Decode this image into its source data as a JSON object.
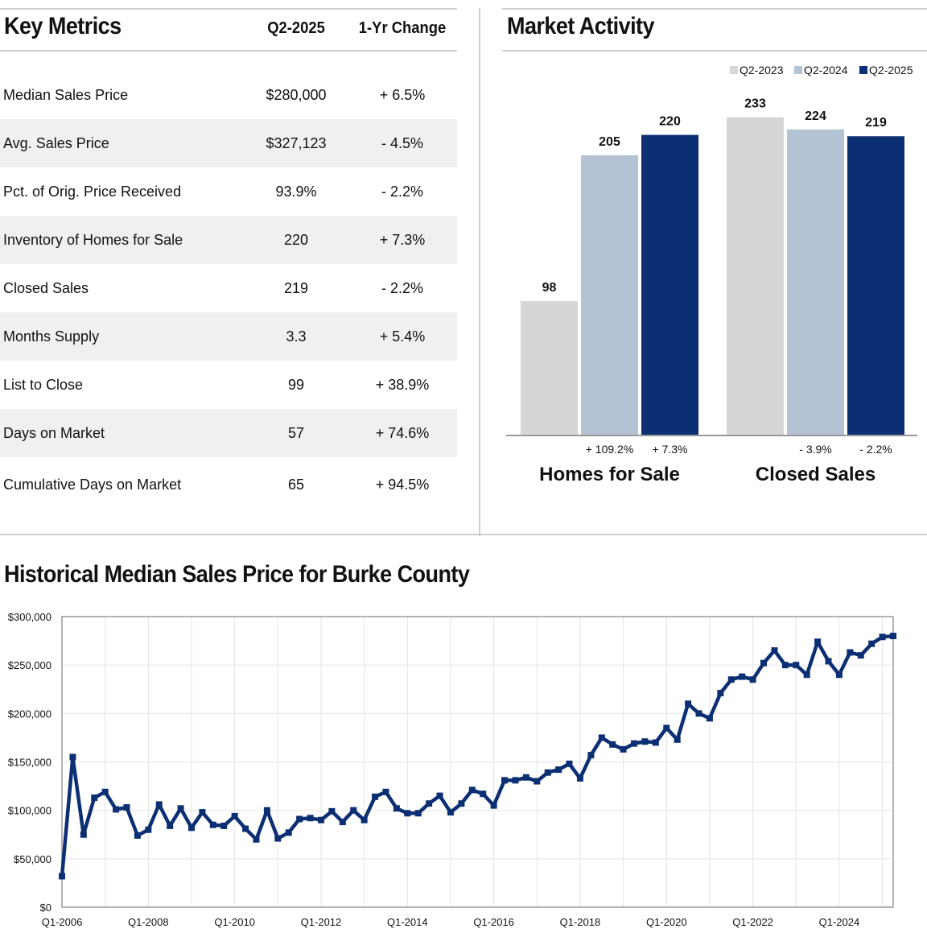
{
  "key_metrics": {
    "title": "Key Metrics",
    "col_period": "Q2-2025",
    "col_change": "1-Yr Change",
    "rows": [
      {
        "label": "Median Sales Price",
        "value": "$280,000",
        "change": "+ 6.5%"
      },
      {
        "label": "Avg. Sales Price",
        "value": "$327,123",
        "change": "- 4.5%"
      },
      {
        "label": "Pct. of Orig. Price Received",
        "value": "93.9%",
        "change": "- 2.2%"
      },
      {
        "label": "Inventory of Homes for Sale",
        "value": "220",
        "change": "+ 7.3%"
      },
      {
        "label": "Closed Sales",
        "value": "219",
        "change": "- 2.2%"
      },
      {
        "label": "Months Supply",
        "value": "3.3",
        "change": "+ 5.4%"
      },
      {
        "label": "List to Close",
        "value": "99",
        "change": "+ 38.9%"
      },
      {
        "label": "Days on Market",
        "value": "57",
        "change": "+ 74.6%"
      },
      {
        "label": "Cumulative Days on Market",
        "value": "65",
        "change": "+ 94.5%"
      }
    ]
  },
  "market_activity": {
    "title": "Market Activity"
  },
  "historical": {
    "title": "Historical Median Sales Price for Burke County"
  },
  "colors": {
    "q2_2023": "#d6d6d6",
    "q2_2024": "#b3c3d4",
    "q2_2025": "#0c2f74",
    "line": "#0c2f74"
  },
  "chart_data": [
    {
      "type": "bar",
      "title": "Market Activity",
      "categories": [
        "Homes for Sale",
        "Closed Sales"
      ],
      "legend": [
        "Q2-2023",
        "Q2-2024",
        "Q2-2025"
      ],
      "series": [
        {
          "name": "Q2-2023",
          "values": [
            98,
            233
          ]
        },
        {
          "name": "Q2-2024",
          "values": [
            205,
            224
          ]
        },
        {
          "name": "Q2-2025",
          "values": [
            220,
            219
          ]
        }
      ],
      "change_labels": [
        [
          "+ 109.2%",
          "+ 7.3%"
        ],
        [
          "- 3.9%",
          "- 2.2%"
        ]
      ],
      "ylim": [
        0,
        250
      ]
    },
    {
      "type": "line",
      "title": "Historical Median Sales Price for Burke County",
      "x_start_year": 2006,
      "x_tick_labels": [
        "Q1-2006",
        "Q1-2008",
        "Q1-2010",
        "Q1-2012",
        "Q1-2014",
        "Q1-2016",
        "Q1-2018",
        "Q1-2020",
        "Q1-2022",
        "Q1-2024"
      ],
      "y_tick_labels": [
        "$0",
        "$50,000",
        "$100,000",
        "$150,000",
        "$200,000",
        "$250,000",
        "$300,000"
      ],
      "ylim": [
        0,
        300000
      ],
      "values": [
        32000,
        155000,
        75000,
        113000,
        119000,
        101000,
        103000,
        74000,
        80000,
        106000,
        84000,
        102000,
        82000,
        98000,
        85000,
        84000,
        94000,
        81000,
        70000,
        100000,
        71000,
        77000,
        91000,
        92000,
        90000,
        99000,
        88000,
        100000,
        90000,
        114000,
        119000,
        102000,
        97000,
        97000,
        107000,
        115000,
        98000,
        107000,
        121000,
        117000,
        105000,
        131000,
        131000,
        134000,
        130000,
        139000,
        142000,
        148000,
        133000,
        157000,
        175000,
        168000,
        163000,
        169000,
        171000,
        170000,
        185000,
        173000,
        210000,
        200000,
        195000,
        221000,
        235000,
        238000,
        235000,
        252000,
        265000,
        250000,
        250000,
        240000,
        274000,
        254000,
        240000,
        263000,
        260000,
        272000,
        279000,
        280000
      ]
    }
  ]
}
